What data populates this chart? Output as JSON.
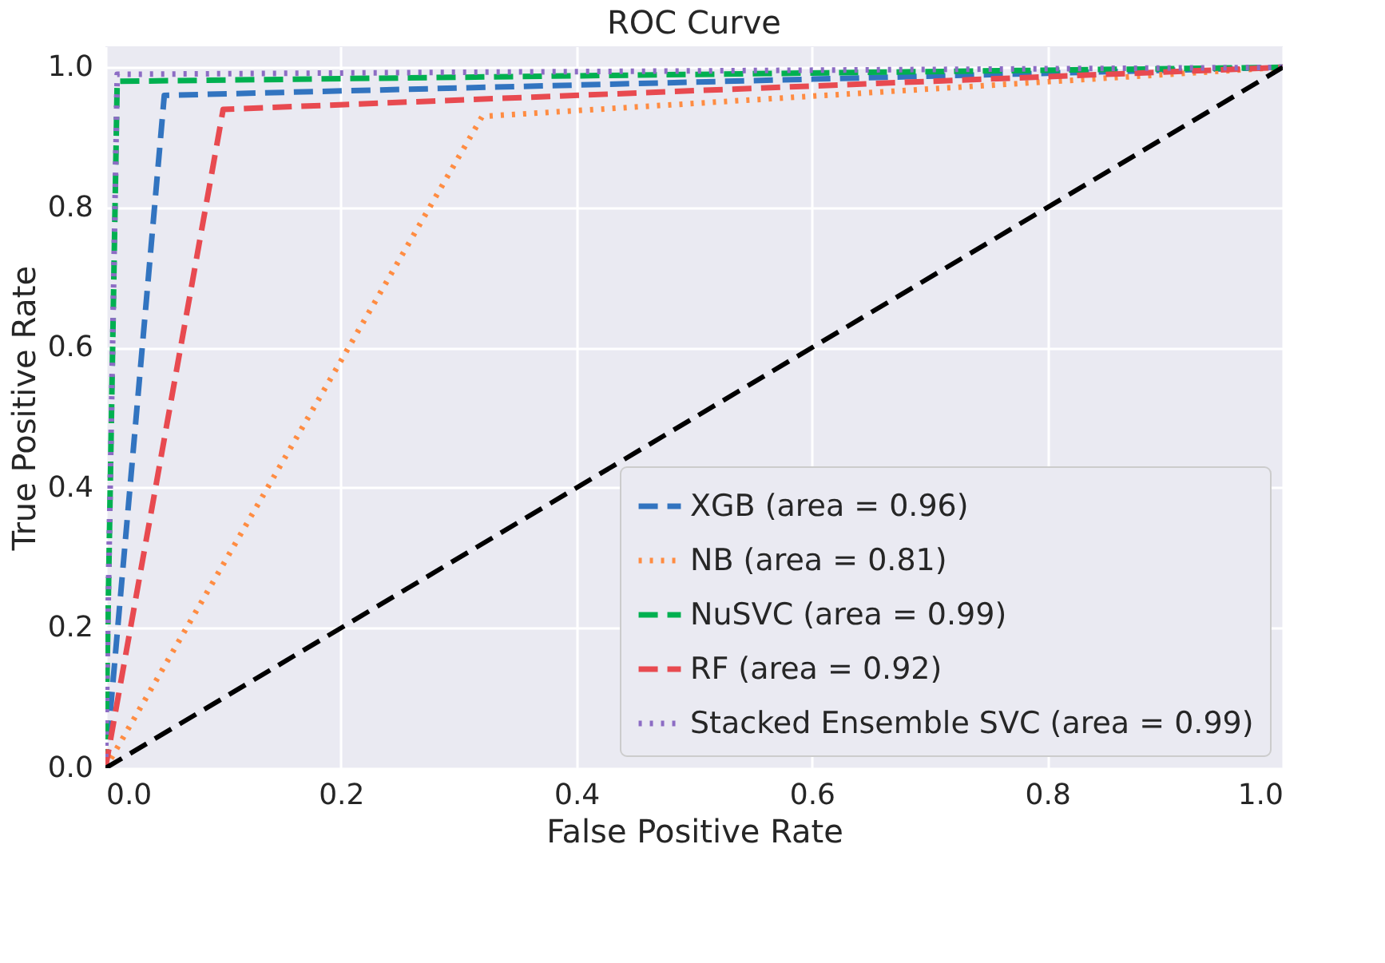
{
  "chart_data": {
    "type": "line",
    "title": "ROC Curve",
    "xlabel": "False Positive Rate",
    "ylabel": "True Positive Rate",
    "xlim": [
      0,
      1
    ],
    "ylim": [
      0,
      1.03
    ],
    "xticks": [
      {
        "value": 0,
        "label": "0.0"
      },
      {
        "value": 0.2,
        "label": "0.2"
      },
      {
        "value": 0.4,
        "label": "0.4"
      },
      {
        "value": 0.6,
        "label": "0.6"
      },
      {
        "value": 0.8,
        "label": "0.8"
      },
      {
        "value": 1,
        "label": "1.0"
      }
    ],
    "yticks": [
      {
        "value": 0,
        "label": "0.0"
      },
      {
        "value": 0.2,
        "label": "0.2"
      },
      {
        "value": 0.4,
        "label": "0.4"
      },
      {
        "value": 0.6,
        "label": "0.6"
      },
      {
        "value": 0.8,
        "label": "0.8"
      },
      {
        "value": 1,
        "label": "1.0"
      }
    ],
    "grid": true,
    "legend": "bottom right",
    "series": [
      {
        "name": "XGB (area = 0.96)",
        "color": "#3274c0",
        "line_style": "dashed",
        "x": [
          0,
          0.05,
          1
        ],
        "values": [
          0,
          0.96,
          1
        ]
      },
      {
        "name": "NB (area = 0.81)",
        "color": "#ff8c42",
        "line_style": "dotted",
        "x": [
          0,
          0.32,
          1
        ],
        "values": [
          0,
          0.93,
          1
        ]
      },
      {
        "name": "NuSVC (area = 0.99)",
        "color": "#00b050",
        "line_style": "dashed",
        "x": [
          0,
          0.01,
          1
        ],
        "values": [
          0,
          0.98,
          1
        ]
      },
      {
        "name": "RF (area = 0.92)",
        "color": "#e84a50",
        "line_style": "dashed",
        "x": [
          0,
          0.1,
          1
        ],
        "values": [
          0,
          0.94,
          1
        ]
      },
      {
        "name": "Stacked Ensemble SVC (area = 0.99)",
        "color": "#8c6cc4",
        "line_style": "dotted",
        "x": [
          0,
          0.01,
          1
        ],
        "values": [
          0,
          0.99,
          1
        ]
      },
      {
        "color": "#000000",
        "line_style": "dashed",
        "x": [
          0,
          1
        ],
        "values": [
          0,
          1
        ]
      }
    ]
  }
}
